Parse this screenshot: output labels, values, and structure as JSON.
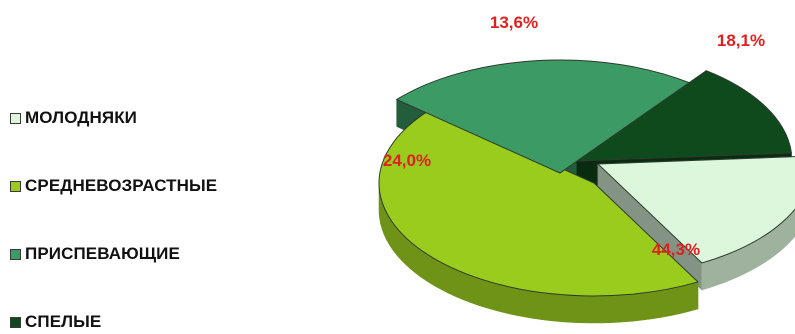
{
  "chart_data": {
    "type": "pie",
    "style": "3d-exploded",
    "title": "",
    "legend_position": "left",
    "label_color": "#e02020",
    "series": [
      {
        "name": "",
        "slices": [
          {
            "label": "МОЛОДНЯКИ",
            "value": 18.1,
            "display": "18,1%",
            "color": "#dcf7dc"
          },
          {
            "label": "СРЕДНЕВОЗРАСТНЫЕ",
            "value": 44.3,
            "display": "44,3%",
            "color": "#9acc1e"
          },
          {
            "label": "ПРИСПЕВАЮЩИЕ",
            "value": 24.0,
            "display": "24,0%",
            "color": "#3c9b64"
          },
          {
            "label": "СПЕЛЫЕ",
            "value": 13.6,
            "display": "13,6%",
            "color": "#0f4a1c"
          }
        ]
      }
    ]
  }
}
